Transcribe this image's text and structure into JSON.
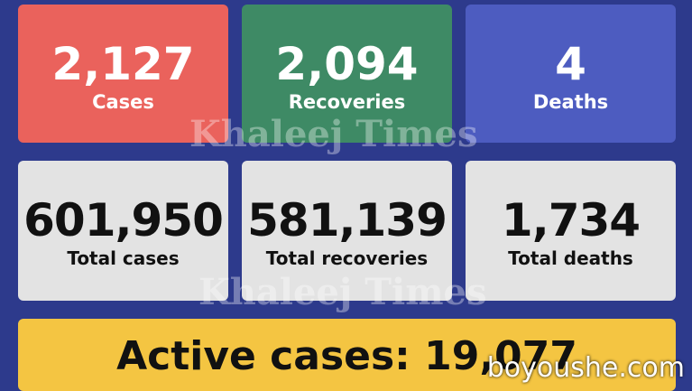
{
  "daily": [
    {
      "value": "2,127",
      "label": "Cases"
    },
    {
      "value": "2,094",
      "label": "Recoveries"
    },
    {
      "value": "4",
      "label": "Deaths"
    }
  ],
  "totals": [
    {
      "value": "601,950",
      "label": "Total cases"
    },
    {
      "value": "581,139",
      "label": "Total recoveries"
    },
    {
      "value": "1,734",
      "label": "Total deaths"
    }
  ],
  "active": "Active cases: 19,077",
  "watermark": "Khaleej Times",
  "site": "boyoushe.com"
}
